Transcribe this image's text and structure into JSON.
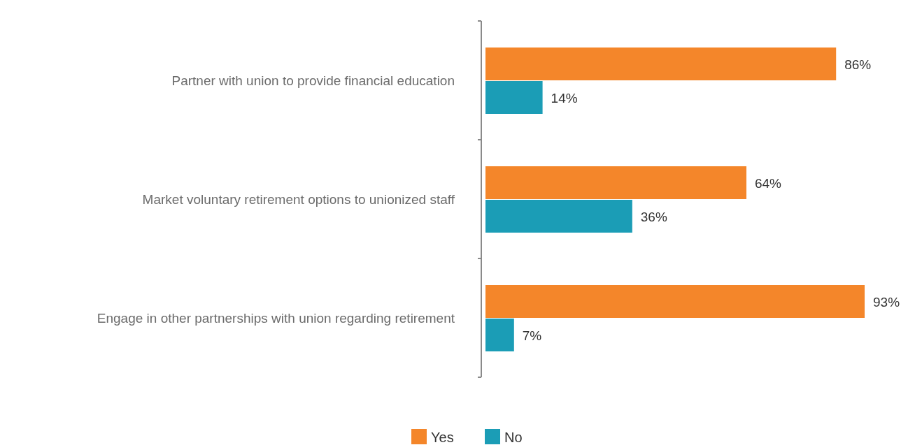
{
  "chart_data": {
    "type": "bar",
    "orientation": "horizontal",
    "categories": [
      "Partner with union to provide financial education",
      "Market voluntary retirement options to unionized staff",
      "Engage in other partnerships with union regarding retirement"
    ],
    "series": [
      {
        "name": "Yes",
        "color": "#f4862a",
        "values": [
          86,
          64,
          93
        ],
        "value_labels": [
          "86%",
          "64%",
          "93%"
        ]
      },
      {
        "name": "No",
        "color": "#1b9db6",
        "values": [
          14,
          36,
          7
        ],
        "value_labels": [
          "14%",
          "36%",
          "7%"
        ]
      }
    ],
    "legend": "bottom",
    "grid": false
  }
}
